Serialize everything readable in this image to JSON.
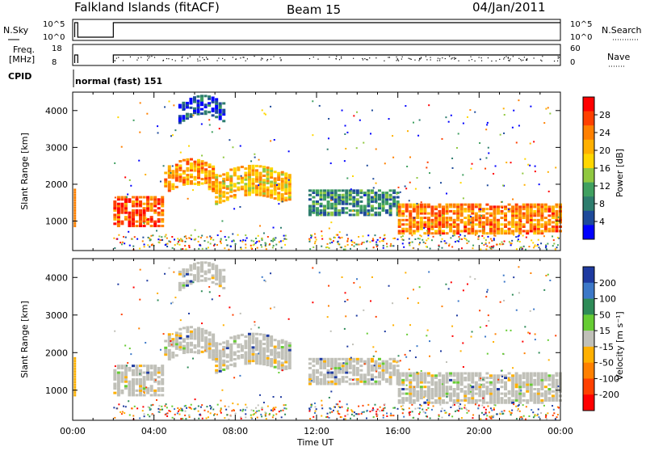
{
  "header": {
    "station": "Falkland Islands (fitACF)",
    "beam": "Beam 15",
    "date": "04/Jan/2011"
  },
  "top_panels": {
    "nsky_label": "N.Sky",
    "nsky_ticks": [
      "10^5",
      "10^0"
    ],
    "nsearch_label": "N.Search",
    "nsearch_ticks": [
      "10^5",
      "10^0"
    ],
    "freq_label_1": "Freq.",
    "freq_label_2": "[MHz]",
    "freq_ticks": [
      "18",
      "8"
    ],
    "nave_label": "Nave",
    "nave_ticks": [
      "60",
      "0"
    ],
    "cpid_label": "CPID",
    "cpid_value": "normal (fast) 151"
  },
  "chart_data": [
    {
      "type": "heatmap",
      "name": "power",
      "ylabel": "Slant Range [km]",
      "xlabel": "Time UT",
      "xlim_hours": [
        0,
        24
      ],
      "ylim_km": [
        200,
        4500
      ],
      "yticks": [
        "4000",
        "3000",
        "2000",
        "1000"
      ],
      "colorbar_label": "Power [dB]",
      "colorbar_ticks": [
        "28",
        "24",
        "20",
        "16",
        "12",
        "8",
        "4"
      ],
      "colorbar_colors": [
        "#ff0000",
        "#ff4000",
        "#ff8000",
        "#ffb000",
        "#ffd700",
        "#90c840",
        "#40a060",
        "#2e7d6e",
        "#1e4a9a",
        "#0000ff"
      ],
      "data_gap_hours": [
        [
          0.15,
          2.0
        ],
        [
          10.6,
          11.6
        ]
      ],
      "bands": [
        {
          "t0": 2.0,
          "t1": 4.5,
          "r0": 900,
          "r1": 1700,
          "level": 26
        },
        {
          "t0": 4.5,
          "t1": 7.0,
          "r0": 1800,
          "r1": 2500,
          "level": 22
        },
        {
          "t0": 7.0,
          "t1": 10.6,
          "r0": 1500,
          "r1": 2300,
          "level": 20
        },
        {
          "t0": 5.2,
          "t1": 7.5,
          "r0": 3700,
          "r1": 4200,
          "level": 6
        },
        {
          "t0": 11.6,
          "t1": 16.0,
          "r0": 1200,
          "r1": 1900,
          "level": 10
        },
        {
          "t0": 16.0,
          "t1": 24.0,
          "r0": 700,
          "r1": 1500,
          "level": 24
        }
      ]
    },
    {
      "type": "heatmap",
      "name": "velocity",
      "ylabel": "Slant Range [km]",
      "xlabel": "Time UT",
      "xlim_hours": [
        0,
        24
      ],
      "ylim_km": [
        200,
        4500
      ],
      "yticks": [
        "4000",
        "3000",
        "2000",
        "1000"
      ],
      "xticks": [
        "00:00",
        "04:00",
        "08:00",
        "12:00",
        "16:00",
        "20:00",
        "00:00"
      ],
      "colorbar_label": "Velocity [m s⁻¹]",
      "colorbar_ticks": [
        "200",
        "100",
        "50",
        "15",
        "-15",
        "-50",
        "-100",
        "-200"
      ],
      "colorbar_colors": [
        "#1e3aa0",
        "#3c78c8",
        "#2e8b57",
        "#66cc33",
        "#c0c0b8",
        "#ffb000",
        "#ff8000",
        "#ff4000",
        "#ff0000"
      ],
      "dominant_value_ms": 0,
      "data_gap_hours": [
        [
          0.15,
          2.0
        ],
        [
          10.6,
          11.6
        ]
      ]
    }
  ]
}
